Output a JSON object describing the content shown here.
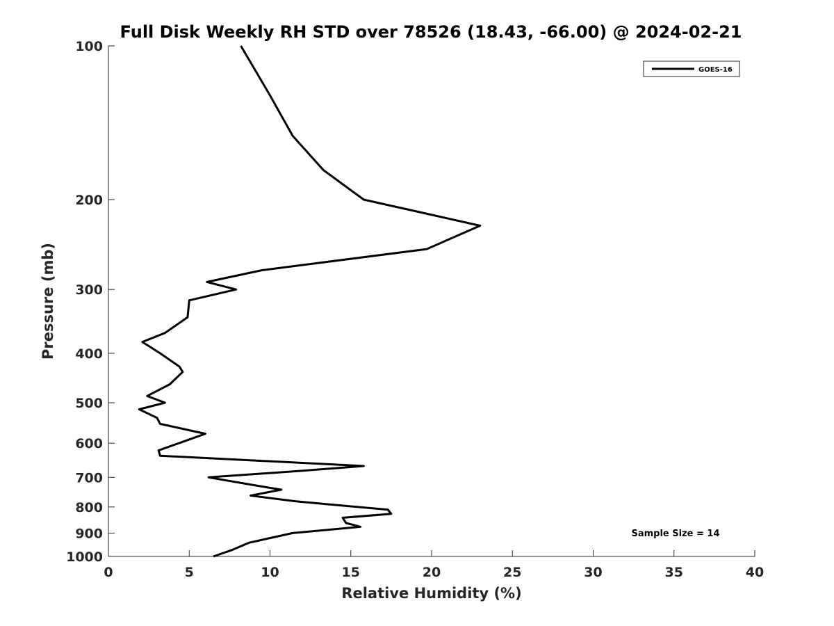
{
  "chart_data": {
    "type": "line",
    "title": "Full Disk Weekly RH STD over 78526 (18.43, -66.00) @ 2024-02-21",
    "xlabel": "Relative Humidity (%)",
    "ylabel": "Pressure (mb)",
    "xlim": [
      0,
      40
    ],
    "ylim": [
      100,
      1000
    ],
    "y_scale": "log",
    "y_reversed": true,
    "x_ticks": [
      0,
      5,
      10,
      15,
      20,
      25,
      30,
      35,
      40
    ],
    "y_ticks": [
      100,
      200,
      300,
      400,
      500,
      600,
      700,
      800,
      900,
      1000
    ],
    "grid": false,
    "legend_position": "top-right",
    "annotation": "Sample Size = 14",
    "series": [
      {
        "name": "GOES-16",
        "color": "#000000",
        "points": [
          [
            8.2,
            100
          ],
          [
            10.0,
            125
          ],
          [
            11.4,
            150
          ],
          [
            13.3,
            175
          ],
          [
            15.8,
            200
          ],
          [
            23.0,
            225
          ],
          [
            19.7,
            250
          ],
          [
            9.5,
            275
          ],
          [
            6.1,
            290
          ],
          [
            7.9,
            300
          ],
          [
            5.0,
            315
          ],
          [
            4.9,
            340
          ],
          [
            3.5,
            365
          ],
          [
            2.1,
            380
          ],
          [
            3.2,
            400
          ],
          [
            4.4,
            425
          ],
          [
            4.6,
            435
          ],
          [
            3.8,
            460
          ],
          [
            2.4,
            485
          ],
          [
            3.5,
            500
          ],
          [
            1.9,
            515
          ],
          [
            3.0,
            535
          ],
          [
            3.2,
            550
          ],
          [
            6.0,
            575
          ],
          [
            3.1,
            620
          ],
          [
            3.2,
            635
          ],
          [
            15.8,
            665
          ],
          [
            11.8,
            680
          ],
          [
            6.2,
            700
          ],
          [
            9.0,
            725
          ],
          [
            10.7,
            740
          ],
          [
            8.8,
            760
          ],
          [
            11.6,
            780
          ],
          [
            17.3,
            810
          ],
          [
            17.5,
            825
          ],
          [
            14.5,
            840
          ],
          [
            14.7,
            860
          ],
          [
            15.6,
            875
          ],
          [
            11.4,
            900
          ],
          [
            9.7,
            925
          ],
          [
            8.7,
            940
          ],
          [
            7.7,
            970
          ],
          [
            6.5,
            1000
          ]
        ]
      }
    ]
  }
}
